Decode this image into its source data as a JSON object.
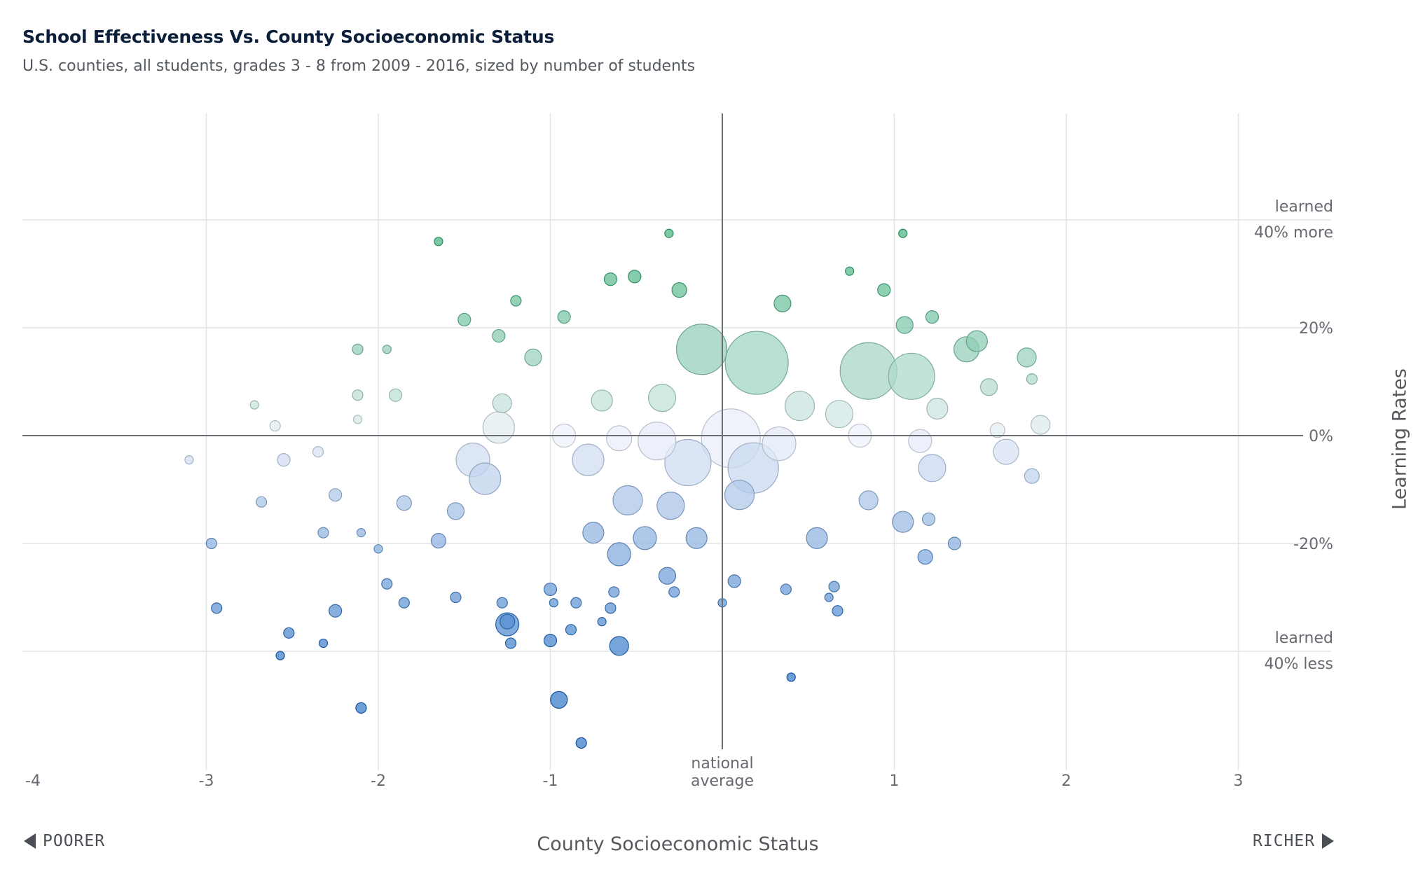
{
  "title": "School Effectiveness Vs. County Socioeconomic Status",
  "subtitle": "U.S. counties, all students, grades 3 - 8 from 2009 - 2016, sized by number of students",
  "nav": {
    "poorer": "POORER",
    "richer": "RICHER"
  },
  "chart_data": {
    "type": "scatter",
    "title": "School Effectiveness Vs. County Socioeconomic Status",
    "xlabel": "County Socioeconomic Status",
    "ylabel": "Learning Rates",
    "xlim": [
      -4,
      3.5
    ],
    "ylim": [
      -0.63,
      0.6
    ],
    "x_ticks": [
      "-4",
      "-3",
      "-2",
      "-1",
      "",
      "1",
      "2",
      "3"
    ],
    "x_tick_values": [
      -4,
      -3,
      -2,
      -1,
      0,
      1,
      2,
      3
    ],
    "x_zero_label": [
      "national",
      "average"
    ],
    "y_ticks": [
      {
        "value": 0.4,
        "label": [
          "learned",
          "40% more"
        ]
      },
      {
        "value": 0.2,
        "label": [
          "20%"
        ]
      },
      {
        "value": 0,
        "label": [
          "0%"
        ]
      },
      {
        "value": -0.2,
        "label": [
          "-20%"
        ]
      },
      {
        "value": -0.4,
        "label": [
          "learned",
          "40% less"
        ]
      }
    ],
    "grid": true,
    "color_scale": {
      "positive": "#52b788",
      "neutral": "#eef1fa",
      "negative": "#3f7fca"
    },
    "points": [
      {
        "x": -1.65,
        "y": 0.36,
        "size": 2
      },
      {
        "x": -0.31,
        "y": 0.375,
        "size": 2
      },
      {
        "x": 1.05,
        "y": 0.375,
        "size": 2
      },
      {
        "x": -0.65,
        "y": 0.29,
        "size": 4
      },
      {
        "x": -0.51,
        "y": 0.295,
        "size": 4
      },
      {
        "x": -0.25,
        "y": 0.27,
        "size": 5
      },
      {
        "x": 0.94,
        "y": 0.27,
        "size": 4
      },
      {
        "x": 0.74,
        "y": 0.305,
        "size": 2
      },
      {
        "x": -1.2,
        "y": 0.25,
        "size": 3
      },
      {
        "x": 0.35,
        "y": 0.245,
        "size": 6
      },
      {
        "x": -1.5,
        "y": 0.215,
        "size": 4
      },
      {
        "x": -0.92,
        "y": 0.22,
        "size": 4
      },
      {
        "x": 1.22,
        "y": 0.22,
        "size": 4
      },
      {
        "x": 1.06,
        "y": 0.205,
        "size": 6
      },
      {
        "x": -2.12,
        "y": 0.16,
        "size": 3
      },
      {
        "x": -1.95,
        "y": 0.16,
        "size": 2
      },
      {
        "x": -1.1,
        "y": 0.145,
        "size": 6
      },
      {
        "x": -1.3,
        "y": 0.185,
        "size": 4
      },
      {
        "x": -0.12,
        "y": 0.16,
        "size": 22
      },
      {
        "x": 0.2,
        "y": 0.135,
        "size": 28
      },
      {
        "x": 0.85,
        "y": 0.12,
        "size": 25
      },
      {
        "x": 1.1,
        "y": 0.11,
        "size": 20
      },
      {
        "x": 1.42,
        "y": 0.16,
        "size": 10
      },
      {
        "x": 1.48,
        "y": 0.175,
        "size": 8
      },
      {
        "x": 1.77,
        "y": 0.145,
        "size": 7
      },
      {
        "x": 1.8,
        "y": 0.105,
        "size": 3
      },
      {
        "x": 1.55,
        "y": 0.09,
        "size": 6
      },
      {
        "x": -2.12,
        "y": 0.075,
        "size": 3
      },
      {
        "x": -1.9,
        "y": 0.075,
        "size": 4
      },
      {
        "x": -2.72,
        "y": 0.057,
        "size": 2
      },
      {
        "x": -2.12,
        "y": 0.03,
        "size": 2
      },
      {
        "x": -2.6,
        "y": 0.018,
        "size": 3
      },
      {
        "x": -1.28,
        "y": 0.06,
        "size": 7
      },
      {
        "x": -0.7,
        "y": 0.065,
        "size": 8
      },
      {
        "x": -0.35,
        "y": 0.07,
        "size": 11
      },
      {
        "x": 0.45,
        "y": 0.055,
        "size": 12
      },
      {
        "x": 0.68,
        "y": 0.04,
        "size": 11
      },
      {
        "x": 1.25,
        "y": 0.05,
        "size": 8
      },
      {
        "x": 1.85,
        "y": 0.02,
        "size": 7
      },
      {
        "x": 1.6,
        "y": 0.01,
        "size": 5
      },
      {
        "x": -1.3,
        "y": 0.015,
        "size": 13
      },
      {
        "x": -0.92,
        "y": 0.0,
        "size": 9
      },
      {
        "x": -0.6,
        "y": -0.005,
        "size": 10
      },
      {
        "x": -0.38,
        "y": -0.01,
        "size": 16
      },
      {
        "x": 0.05,
        "y": -0.005,
        "size": 26
      },
      {
        "x": 0.33,
        "y": -0.015,
        "size": 14
      },
      {
        "x": 0.8,
        "y": 0.0,
        "size": 9
      },
      {
        "x": 1.15,
        "y": -0.01,
        "size": 9
      },
      {
        "x": 1.65,
        "y": -0.03,
        "size": 10
      },
      {
        "x": -1.45,
        "y": -0.045,
        "size": 14
      },
      {
        "x": -0.78,
        "y": -0.045,
        "size": 13
      },
      {
        "x": -0.2,
        "y": -0.05,
        "size": 20
      },
      {
        "x": 0.18,
        "y": -0.06,
        "size": 22
      },
      {
        "x": 1.22,
        "y": -0.06,
        "size": 11
      },
      {
        "x": 1.8,
        "y": -0.075,
        "size": 5
      },
      {
        "x": -1.38,
        "y": -0.08,
        "size": 13
      },
      {
        "x": -3.1,
        "y": -0.045,
        "size": 2
      },
      {
        "x": -2.55,
        "y": -0.045,
        "size": 4
      },
      {
        "x": -2.35,
        "y": -0.03,
        "size": 3
      },
      {
        "x": -2.25,
        "y": -0.11,
        "size": 4
      },
      {
        "x": -2.68,
        "y": -0.123,
        "size": 3
      },
      {
        "x": -1.85,
        "y": -0.125,
        "size": 5
      },
      {
        "x": -1.55,
        "y": -0.14,
        "size": 6
      },
      {
        "x": -0.55,
        "y": -0.12,
        "size": 12
      },
      {
        "x": -0.3,
        "y": -0.13,
        "size": 11
      },
      {
        "x": 0.1,
        "y": -0.11,
        "size": 12
      },
      {
        "x": 0.85,
        "y": -0.12,
        "size": 7
      },
      {
        "x": 1.05,
        "y": -0.16,
        "size": 8
      },
      {
        "x": 1.2,
        "y": -0.155,
        "size": 4
      },
      {
        "x": -1.65,
        "y": -0.195,
        "size": 5
      },
      {
        "x": -0.75,
        "y": -0.18,
        "size": 8
      },
      {
        "x": -0.45,
        "y": -0.19,
        "size": 9
      },
      {
        "x": -0.15,
        "y": -0.19,
        "size": 8
      },
      {
        "x": 0.55,
        "y": -0.19,
        "size": 8
      },
      {
        "x": 1.35,
        "y": -0.2,
        "size": 4
      },
      {
        "x": 1.18,
        "y": -0.225,
        "size": 5
      },
      {
        "x": -2.97,
        "y": -0.2,
        "size": 3
      },
      {
        "x": -2.32,
        "y": -0.18,
        "size": 3
      },
      {
        "x": -2.1,
        "y": -0.18,
        "size": 2
      },
      {
        "x": -2.0,
        "y": -0.21,
        "size": 2
      },
      {
        "x": -0.6,
        "y": -0.22,
        "size": 9
      },
      {
        "x": -0.32,
        "y": -0.26,
        "size": 6
      },
      {
        "x": -0.28,
        "y": -0.29,
        "size": 3
      },
      {
        "x": 0.07,
        "y": -0.27,
        "size": 4
      },
      {
        "x": 0.37,
        "y": -0.285,
        "size": 3
      },
      {
        "x": 0.65,
        "y": -0.28,
        "size": 3
      },
      {
        "x": 0.62,
        "y": -0.3,
        "size": 2
      },
      {
        "x": 0.67,
        "y": -0.325,
        "size": 3
      },
      {
        "x": 0.0,
        "y": -0.31,
        "size": 2
      },
      {
        "x": -1.0,
        "y": -0.285,
        "size": 4
      },
      {
        "x": -0.63,
        "y": -0.29,
        "size": 3
      },
      {
        "x": -1.28,
        "y": -0.31,
        "size": 3
      },
      {
        "x": -1.25,
        "y": -0.35,
        "size": 9
      },
      {
        "x": -1.25,
        "y": -0.345,
        "size": 5
      },
      {
        "x": -0.98,
        "y": -0.31,
        "size": 2
      },
      {
        "x": -0.85,
        "y": -0.31,
        "size": 3
      },
      {
        "x": -0.65,
        "y": -0.32,
        "size": 3
      },
      {
        "x": -0.7,
        "y": -0.345,
        "size": 2
      },
      {
        "x": -0.88,
        "y": -0.36,
        "size": 3
      },
      {
        "x": -2.25,
        "y": -0.325,
        "size": 4
      },
      {
        "x": -2.94,
        "y": -0.32,
        "size": 3
      },
      {
        "x": -2.52,
        "y": -0.366,
        "size": 3
      },
      {
        "x": -2.32,
        "y": -0.385,
        "size": 2
      },
      {
        "x": -2.57,
        "y": -0.408,
        "size": 2
      },
      {
        "x": -1.95,
        "y": -0.275,
        "size": 3
      },
      {
        "x": -1.85,
        "y": -0.31,
        "size": 3
      },
      {
        "x": -1.55,
        "y": -0.3,
        "size": 3
      },
      {
        "x": -1.0,
        "y": -0.38,
        "size": 4
      },
      {
        "x": -1.23,
        "y": -0.385,
        "size": 3
      },
      {
        "x": -0.6,
        "y": -0.39,
        "size": 7
      },
      {
        "x": 0.4,
        "y": -0.448,
        "size": 2
      },
      {
        "x": -2.1,
        "y": -0.505,
        "size": 3
      },
      {
        "x": -0.95,
        "y": -0.49,
        "size": 6
      },
      {
        "x": -0.82,
        "y": -0.57,
        "size": 3
      }
    ]
  }
}
